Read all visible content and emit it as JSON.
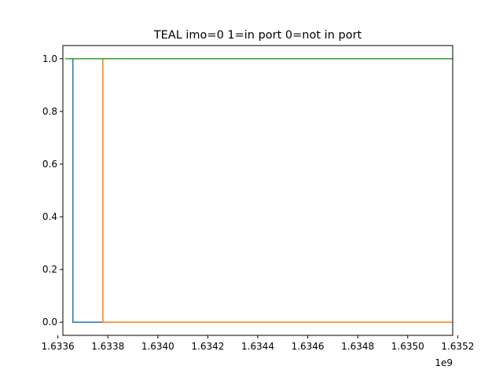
{
  "chart_data": {
    "type": "line",
    "title": "TEAL imo=0 1=in port 0=not in port",
    "xlabel": "",
    "ylabel": "",
    "x_offset_label": "1e9",
    "xlim": [
      1.63362,
      1.63518
    ],
    "ylim": [
      -0.05,
      1.05
    ],
    "x_ticks": [
      1.6336,
      1.6338,
      1.634,
      1.6342,
      1.6344,
      1.6346,
      1.6348,
      1.635,
      1.6352
    ],
    "x_tick_labels": [
      "1.6336",
      "1.6338",
      "1.6340",
      "1.6342",
      "1.6344",
      "1.6346",
      "1.6348",
      "1.6350",
      "1.6352"
    ],
    "y_ticks": [
      0.0,
      0.2,
      0.4,
      0.6,
      0.8,
      1.0
    ],
    "y_tick_labels": [
      "0.0",
      "0.2",
      "0.4",
      "0.6",
      "0.8",
      "1.0"
    ],
    "grid": false,
    "legend": "none",
    "series": [
      {
        "color": "#1f77b4",
        "points": [
          [
            1.63363,
            1.0
          ],
          [
            1.63366,
            1.0
          ],
          [
            1.63366,
            0.0
          ],
          [
            1.63518,
            0.0
          ]
        ]
      },
      {
        "color": "#ff7f0e",
        "points": [
          [
            1.63363,
            1.0
          ],
          [
            1.63378,
            1.0
          ],
          [
            1.63378,
            0.0
          ],
          [
            1.63518,
            0.0
          ]
        ]
      },
      {
        "color": "#2ca02c",
        "points": [
          [
            1.63363,
            1.0
          ],
          [
            1.63518,
            1.0
          ]
        ]
      }
    ]
  }
}
